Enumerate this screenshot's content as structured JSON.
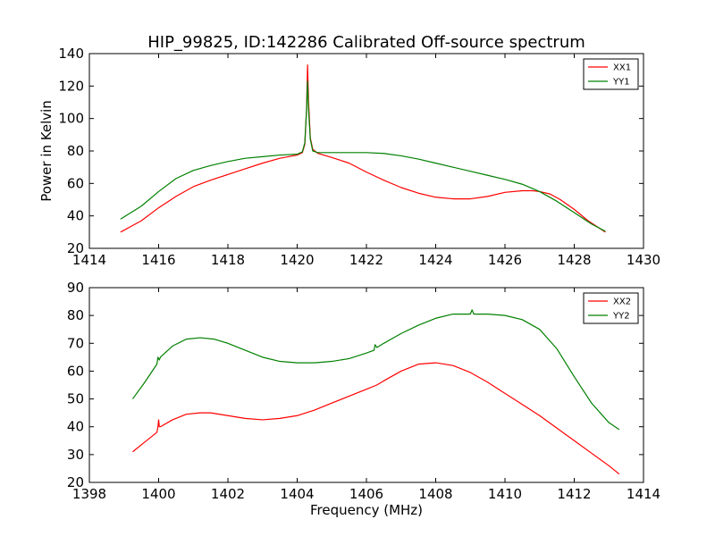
{
  "title": "HIP_99825, ID:142286 Calibrated Off-source spectrum",
  "chart_data": [
    {
      "type": "line",
      "title": "HIP_99825, ID:142286 Calibrated Off-source spectrum",
      "xlabel": "",
      "ylabel": "Power in Kelvin",
      "xlim": [
        1414,
        1430
      ],
      "ylim": [
        20,
        140
      ],
      "xticks": [
        "1414",
        "1416",
        "1418",
        "1420",
        "1422",
        "1424",
        "1426",
        "1428",
        "1430"
      ],
      "yticks": [
        "20",
        "40",
        "60",
        "80",
        "100",
        "120",
        "140"
      ],
      "grid": false,
      "legend": "top-right",
      "series": [
        {
          "name": "XX1",
          "color": "#ff0000",
          "x": [
            1414.9,
            1415.5,
            1416.0,
            1416.5,
            1417.0,
            1417.5,
            1418.0,
            1418.5,
            1419.0,
            1419.5,
            1420.0,
            1420.15,
            1420.22,
            1420.27,
            1420.3,
            1420.33,
            1420.38,
            1420.45,
            1420.6,
            1421.0,
            1421.5,
            1422.0,
            1422.5,
            1423.0,
            1423.5,
            1424.0,
            1424.5,
            1425.0,
            1425.5,
            1426.0,
            1426.5,
            1426.8,
            1427.0,
            1427.3,
            1427.6,
            1428.0,
            1428.4,
            1428.9
          ],
          "y": [
            30,
            37,
            45,
            52,
            58,
            62,
            65.5,
            69,
            72.5,
            75.5,
            77.5,
            79,
            84,
            105,
            133,
            110,
            88,
            81,
            78.5,
            76,
            72.5,
            67,
            62,
            57.5,
            54,
            51.5,
            50.5,
            50.5,
            52,
            54.5,
            55.5,
            55.5,
            55,
            53.5,
            50,
            44,
            37,
            30
          ]
        },
        {
          "name": "YY1",
          "color": "#008000",
          "x": [
            1414.9,
            1415.5,
            1416.0,
            1416.5,
            1417.0,
            1417.5,
            1418.0,
            1418.5,
            1419.0,
            1419.5,
            1420.0,
            1420.15,
            1420.22,
            1420.27,
            1420.3,
            1420.33,
            1420.38,
            1420.45,
            1420.6,
            1421.0,
            1421.5,
            1422.0,
            1422.5,
            1423.0,
            1423.5,
            1424.0,
            1424.5,
            1425.0,
            1425.5,
            1426.0,
            1426.5,
            1427.0,
            1427.5,
            1428.0,
            1428.5,
            1428.9
          ],
          "y": [
            38,
            46,
            55,
            63,
            68,
            71,
            73.5,
            75.5,
            76.5,
            77.5,
            78,
            79.5,
            85,
            105,
            123,
            105,
            87,
            80,
            79,
            79,
            79,
            79,
            78.5,
            77,
            75,
            72.5,
            70,
            67.5,
            65,
            62.5,
            59.5,
            55,
            49,
            42,
            35,
            30.5
          ]
        }
      ]
    },
    {
      "type": "line",
      "title": "",
      "xlabel": "Frequency (MHz)",
      "ylabel": "",
      "xlim": [
        1398,
        1414
      ],
      "ylim": [
        20,
        90
      ],
      "xticks": [
        "1398",
        "1400",
        "1402",
        "1404",
        "1406",
        "1408",
        "1410",
        "1412",
        "1414"
      ],
      "yticks": [
        "20",
        "30",
        "40",
        "50",
        "60",
        "70",
        "80",
        "90"
      ],
      "grid": false,
      "legend": "top-right",
      "series": [
        {
          "name": "XX2",
          "color": "#ff0000",
          "x": [
            1399.25,
            1399.6,
            1399.95,
            1399.98,
            1400.0,
            1400.02,
            1400.05,
            1400.4,
            1400.8,
            1401.2,
            1401.5,
            1402.0,
            1402.5,
            1403.0,
            1403.5,
            1404.0,
            1404.5,
            1405.0,
            1405.5,
            1406.0,
            1406.3,
            1406.5,
            1407.0,
            1407.5,
            1408.0,
            1408.5,
            1409.0,
            1409.5,
            1410.0,
            1410.5,
            1411.0,
            1411.5,
            1412.0,
            1412.5,
            1413.0,
            1413.3
          ],
          "y": [
            31,
            34.5,
            38,
            40,
            42.5,
            40,
            40,
            42.5,
            44.5,
            45,
            45,
            44,
            43,
            42.5,
            43,
            44,
            46,
            48.5,
            51,
            53.5,
            55,
            56.5,
            60,
            62.5,
            63,
            62,
            59.5,
            56,
            52,
            48,
            44,
            39.5,
            35,
            30.5,
            26,
            23
          ]
        },
        {
          "name": "YY2",
          "color": "#008000",
          "x": [
            1399.25,
            1399.6,
            1399.95,
            1399.98,
            1400.0,
            1400.02,
            1400.05,
            1400.4,
            1400.8,
            1401.2,
            1401.6,
            1402.0,
            1402.5,
            1403.0,
            1403.5,
            1404.0,
            1404.5,
            1405.0,
            1405.5,
            1406.0,
            1406.22,
            1406.25,
            1406.3,
            1406.5,
            1407.0,
            1407.5,
            1408.0,
            1408.5,
            1409.0,
            1409.05,
            1409.1,
            1409.5,
            1410.0,
            1410.5,
            1411.0,
            1411.5,
            1412.0,
            1412.5,
            1413.0,
            1413.3
          ],
          "y": [
            50,
            56,
            62.5,
            65,
            64.5,
            64,
            65,
            69,
            71.5,
            72,
            71.5,
            70,
            67.5,
            65,
            63.5,
            63,
            63,
            63.5,
            64.5,
            66.5,
            67.5,
            69.5,
            68.5,
            70,
            73.5,
            76.5,
            79,
            80.5,
            80.5,
            82,
            80.5,
            80.5,
            80,
            78.5,
            75,
            68,
            58,
            48.5,
            41.5,
            39
          ]
        }
      ]
    }
  ]
}
